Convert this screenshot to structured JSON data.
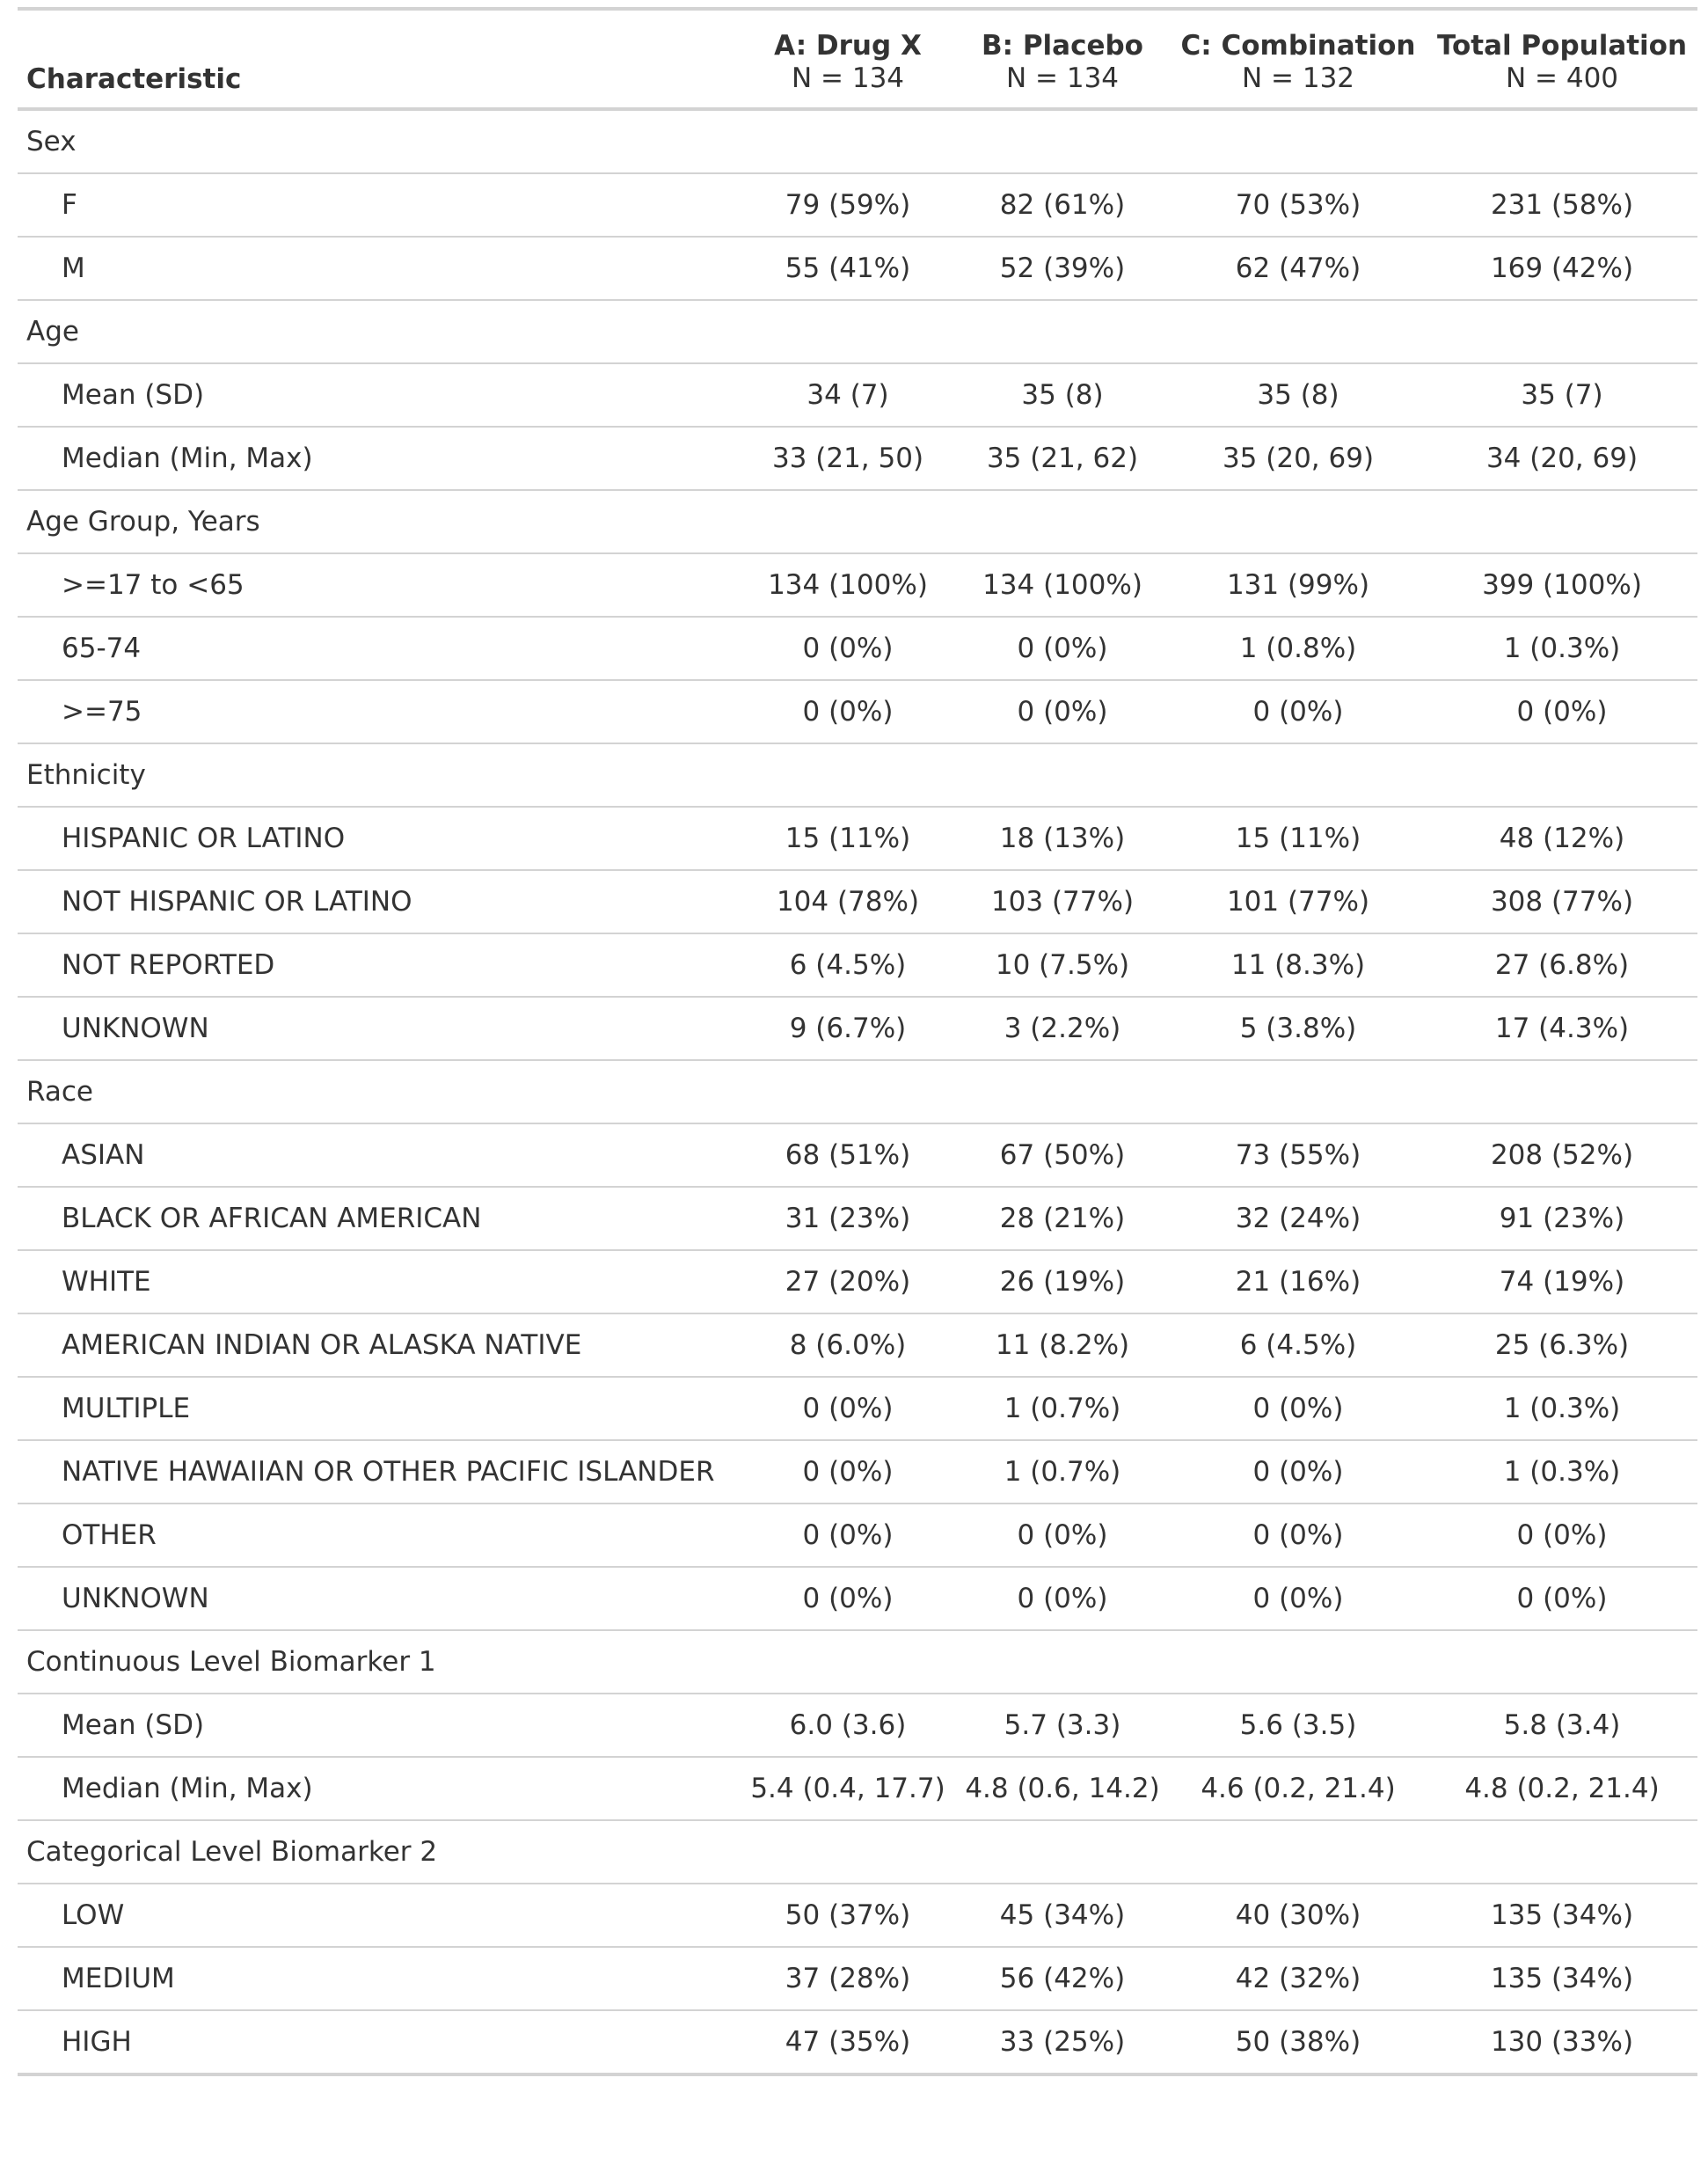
{
  "table": {
    "stub_header": "Characteristic",
    "columns": [
      {
        "name": "A: Drug X",
        "n": "N = 134"
      },
      {
        "name": "B: Placebo",
        "n": "N = 134"
      },
      {
        "name": "C: Combination",
        "n": "N = 132"
      },
      {
        "name": "Total Population",
        "n": "N = 400"
      }
    ],
    "rows": [
      {
        "type": "group",
        "label": "Sex"
      },
      {
        "type": "level",
        "label": "F",
        "values": [
          "79 (59%)",
          "82 (61%)",
          "70 (53%)",
          "231 (58%)"
        ]
      },
      {
        "type": "level",
        "label": "M",
        "values": [
          "55 (41%)",
          "52 (39%)",
          "62 (47%)",
          "169 (42%)"
        ]
      },
      {
        "type": "group",
        "label": "Age"
      },
      {
        "type": "level",
        "label": "Mean (SD)",
        "values": [
          "34 (7)",
          "35 (8)",
          "35 (8)",
          "35 (7)"
        ]
      },
      {
        "type": "level",
        "label": "Median (Min, Max)",
        "values": [
          "33 (21, 50)",
          "35 (21, 62)",
          "35 (20, 69)",
          "34 (20, 69)"
        ]
      },
      {
        "type": "group",
        "label": "Age Group, Years"
      },
      {
        "type": "level",
        "label": ">=17 to <65",
        "values": [
          "134 (100%)",
          "134 (100%)",
          "131 (99%)",
          "399 (100%)"
        ]
      },
      {
        "type": "level",
        "label": "65-74",
        "values": [
          "0 (0%)",
          "0 (0%)",
          "1 (0.8%)",
          "1 (0.3%)"
        ]
      },
      {
        "type": "level",
        "label": ">=75",
        "values": [
          "0 (0%)",
          "0 (0%)",
          "0 (0%)",
          "0 (0%)"
        ]
      },
      {
        "type": "group",
        "label": "Ethnicity"
      },
      {
        "type": "level",
        "label": "HISPANIC OR LATINO",
        "values": [
          "15 (11%)",
          "18 (13%)",
          "15 (11%)",
          "48 (12%)"
        ]
      },
      {
        "type": "level",
        "label": "NOT HISPANIC OR LATINO",
        "values": [
          "104 (78%)",
          "103 (77%)",
          "101 (77%)",
          "308 (77%)"
        ]
      },
      {
        "type": "level",
        "label": "NOT REPORTED",
        "values": [
          "6 (4.5%)",
          "10 (7.5%)",
          "11 (8.3%)",
          "27 (6.8%)"
        ]
      },
      {
        "type": "level",
        "label": "UNKNOWN",
        "values": [
          "9 (6.7%)",
          "3 (2.2%)",
          "5 (3.8%)",
          "17 (4.3%)"
        ]
      },
      {
        "type": "group",
        "label": "Race"
      },
      {
        "type": "level",
        "label": "ASIAN",
        "values": [
          "68 (51%)",
          "67 (50%)",
          "73 (55%)",
          "208 (52%)"
        ]
      },
      {
        "type": "level",
        "label": "BLACK OR AFRICAN AMERICAN",
        "values": [
          "31 (23%)",
          "28 (21%)",
          "32 (24%)",
          "91 (23%)"
        ]
      },
      {
        "type": "level",
        "label": "WHITE",
        "values": [
          "27 (20%)",
          "26 (19%)",
          "21 (16%)",
          "74 (19%)"
        ]
      },
      {
        "type": "level",
        "label": "AMERICAN INDIAN OR ALASKA NATIVE",
        "values": [
          "8 (6.0%)",
          "11 (8.2%)",
          "6 (4.5%)",
          "25 (6.3%)"
        ]
      },
      {
        "type": "level",
        "label": "MULTIPLE",
        "values": [
          "0 (0%)",
          "1 (0.7%)",
          "0 (0%)",
          "1 (0.3%)"
        ]
      },
      {
        "type": "level",
        "label": "NATIVE HAWAIIAN OR OTHER PACIFIC ISLANDER",
        "values": [
          "0 (0%)",
          "1 (0.7%)",
          "0 (0%)",
          "1 (0.3%)"
        ]
      },
      {
        "type": "level",
        "label": "OTHER",
        "values": [
          "0 (0%)",
          "0 (0%)",
          "0 (0%)",
          "0 (0%)"
        ]
      },
      {
        "type": "level",
        "label": "UNKNOWN",
        "values": [
          "0 (0%)",
          "0 (0%)",
          "0 (0%)",
          "0 (0%)"
        ]
      },
      {
        "type": "group",
        "label": "Continuous Level Biomarker 1"
      },
      {
        "type": "level",
        "label": "Mean (SD)",
        "values": [
          "6.0 (3.6)",
          "5.7 (3.3)",
          "5.6 (3.5)",
          "5.8 (3.4)"
        ]
      },
      {
        "type": "level",
        "label": "Median (Min, Max)",
        "values": [
          "5.4 (0.4, 17.7)",
          "4.8 (0.6, 14.2)",
          "4.6 (0.2, 21.4)",
          "4.8 (0.2, 21.4)"
        ]
      },
      {
        "type": "group",
        "label": "Categorical Level Biomarker 2"
      },
      {
        "type": "level",
        "label": "LOW",
        "values": [
          "50 (37%)",
          "45 (34%)",
          "40 (30%)",
          "135 (34%)"
        ]
      },
      {
        "type": "level",
        "label": "MEDIUM",
        "values": [
          "37 (28%)",
          "56 (42%)",
          "42 (32%)",
          "135 (34%)"
        ]
      },
      {
        "type": "level",
        "label": "HIGH",
        "values": [
          "47 (35%)",
          "33 (25%)",
          "50 (38%)",
          "130 (33%)"
        ]
      }
    ]
  }
}
